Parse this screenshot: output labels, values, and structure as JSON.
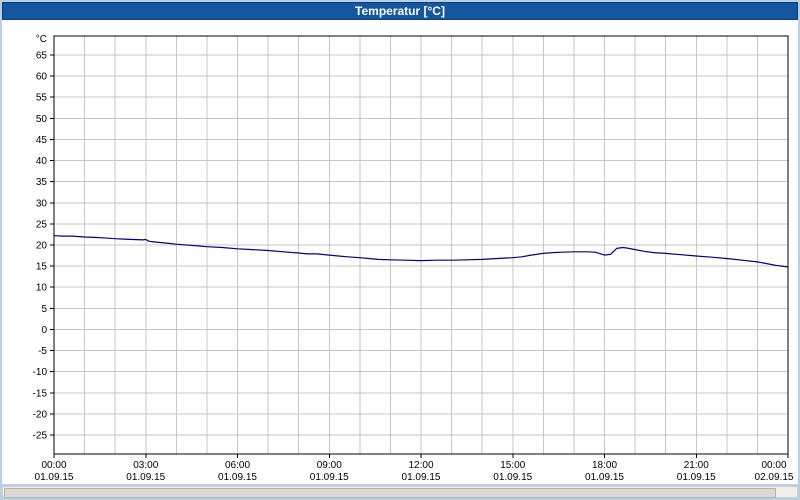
{
  "window": {
    "title": "Temperatur [°C]"
  },
  "chart_data": {
    "type": "line",
    "title": "Temperatur [°C]",
    "y_unit": "°C",
    "ylim": [
      -29.5,
      69.5
    ],
    "y_tick_min": -25,
    "y_tick_max": 65,
    "y_tick_step": 5,
    "grid": "on",
    "minor_x_step_hours": 1,
    "x_ticks": [
      {
        "hour": 0,
        "time": "00:00",
        "date": "01.09.15"
      },
      {
        "hour": 3,
        "time": "03:00",
        "date": "01.09.15"
      },
      {
        "hour": 6,
        "time": "06:00",
        "date": "01.09.15"
      },
      {
        "hour": 9,
        "time": "09:00",
        "date": "01.09.15"
      },
      {
        "hour": 12,
        "time": "12:00",
        "date": "01.09.15"
      },
      {
        "hour": 15,
        "time": "15:00",
        "date": "01.09.15"
      },
      {
        "hour": 18,
        "time": "18:00",
        "date": "01.09.15"
      },
      {
        "hour": 21,
        "time": "21:00",
        "date": "01.09.15"
      },
      {
        "hour": 24,
        "time": "00:00",
        "date": "02.09.15"
      }
    ],
    "series": [
      {
        "name": "Temperatur",
        "color": "#000080",
        "points": [
          [
            0,
            22.2
          ],
          [
            0.3,
            22.1
          ],
          [
            0.6,
            22.1
          ],
          [
            1,
            21.9
          ],
          [
            1.3,
            21.8
          ],
          [
            1.6,
            21.7
          ],
          [
            2,
            21.5
          ],
          [
            2.3,
            21.4
          ],
          [
            2.6,
            21.3
          ],
          [
            2.9,
            21.2
          ],
          [
            3.0,
            21.3
          ],
          [
            3.1,
            20.9
          ],
          [
            3.3,
            20.7
          ],
          [
            3.6,
            20.5
          ],
          [
            4,
            20.2
          ],
          [
            4.5,
            19.9
          ],
          [
            5,
            19.6
          ],
          [
            5.5,
            19.4
          ],
          [
            6,
            19.1
          ],
          [
            6.5,
            18.9
          ],
          [
            7,
            18.7
          ],
          [
            7.5,
            18.4
          ],
          [
            8,
            18.1
          ],
          [
            8.3,
            17.9
          ],
          [
            8.6,
            17.9
          ],
          [
            9,
            17.6
          ],
          [
            9.3,
            17.4
          ],
          [
            9.6,
            17.2
          ],
          [
            10,
            17.0
          ],
          [
            10.3,
            16.8
          ],
          [
            10.6,
            16.6
          ],
          [
            11,
            16.5
          ],
          [
            11.5,
            16.4
          ],
          [
            12,
            16.3
          ],
          [
            12.5,
            16.4
          ],
          [
            13,
            16.4
          ],
          [
            13.5,
            16.5
          ],
          [
            14,
            16.6
          ],
          [
            14.5,
            16.8
          ],
          [
            15,
            17.0
          ],
          [
            15.3,
            17.2
          ],
          [
            15.6,
            17.6
          ],
          [
            16,
            18.0
          ],
          [
            16.3,
            18.2
          ],
          [
            16.6,
            18.3
          ],
          [
            17,
            18.4
          ],
          [
            17.4,
            18.4
          ],
          [
            17.7,
            18.3
          ],
          [
            18,
            17.6
          ],
          [
            18.2,
            17.8
          ],
          [
            18.4,
            19.2
          ],
          [
            18.6,
            19.4
          ],
          [
            18.8,
            19.2
          ],
          [
            19,
            18.9
          ],
          [
            19.3,
            18.5
          ],
          [
            19.6,
            18.2
          ],
          [
            20,
            18.0
          ],
          [
            20.5,
            17.7
          ],
          [
            21,
            17.4
          ],
          [
            21.5,
            17.1
          ],
          [
            22,
            16.8
          ],
          [
            22.5,
            16.4
          ],
          [
            23,
            16.0
          ],
          [
            23.3,
            15.6
          ],
          [
            23.6,
            15.2
          ],
          [
            23.8,
            15.0
          ],
          [
            24,
            14.8
          ]
        ]
      }
    ],
    "colors": {
      "line": "#000080",
      "grid": "#c6c6c6",
      "plot_border": "#000000",
      "titlebar_bg": "#15579e",
      "titlebar_text": "#ffffff",
      "frame_bg": "#b7cfe7",
      "plot_bg": "#ffffff"
    }
  }
}
